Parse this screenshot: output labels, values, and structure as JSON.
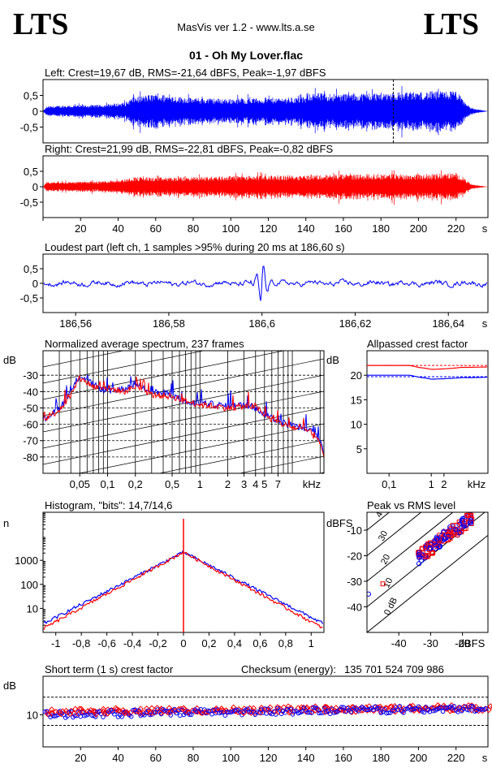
{
  "header": {
    "logo_left": "LTS",
    "logo_right": "LTS",
    "app_title": "MasVis ver 1.2 - www.lts.a.se",
    "file_title": "01 - Oh My Lover.flac"
  },
  "colors": {
    "left": "#0000ff",
    "right": "#ff0000",
    "axes": "#000000"
  },
  "chart_data": [
    {
      "type": "line",
      "title": "Left: Crest=19,67 dB, RMS=-21,64 dBFS, Peak=-1,97 dBFS",
      "ytick_labels": [
        "0,5",
        "0",
        "-0,5"
      ],
      "yticks": [
        0.5,
        0,
        -0.5
      ],
      "ylim": [
        -1,
        1
      ],
      "xlim": [
        0,
        237
      ],
      "marker_x": 186.6,
      "series": [
        {
          "envelope_x": [
            0,
            2,
            10,
            30,
            44,
            48,
            60,
            80,
            100,
            140,
            140.5,
            160,
            185,
            200,
            220,
            224,
            228,
            237
          ],
          "envelope_y": [
            0,
            0.15,
            0.18,
            0.2,
            0.28,
            0.45,
            0.55,
            0.42,
            0.4,
            0.45,
            0.58,
            0.56,
            0.6,
            0.62,
            0.65,
            0.35,
            0.1,
            0
          ]
        }
      ]
    },
    {
      "type": "line",
      "title": "Right: Crest=21,99 dB, RMS=-22,81 dBFS, Peak=-0,82 dBFS",
      "ytick_labels": [
        "0,5",
        "0",
        "-0,5"
      ],
      "yticks": [
        0.5,
        0,
        -0.5
      ],
      "ylim": [
        -1,
        1
      ],
      "xlim": [
        0,
        237
      ],
      "xtick_labels": [
        "20",
        "40",
        "60",
        "80",
        "100",
        "120",
        "140",
        "160",
        "180",
        "200",
        "220",
        "s"
      ],
      "xticks": [
        20,
        40,
        60,
        80,
        100,
        120,
        140,
        160,
        180,
        200,
        220
      ],
      "series": [
        {
          "envelope_x": [
            0,
            2,
            10,
            30,
            44,
            48,
            60,
            80,
            100,
            140,
            160,
            185,
            200,
            220,
            224,
            228,
            237
          ],
          "envelope_y": [
            0,
            0.15,
            0.16,
            0.18,
            0.25,
            0.32,
            0.3,
            0.32,
            0.35,
            0.38,
            0.4,
            0.42,
            0.4,
            0.45,
            0.3,
            0.08,
            0
          ]
        }
      ]
    },
    {
      "type": "line",
      "title": "Loudest part (left  ch, 1 samples >95% during 20 ms at 186,60 s)",
      "ytick_labels": [
        "0,5",
        "0",
        "-0,5"
      ],
      "yticks": [
        0.5,
        0,
        -0.5
      ],
      "ylim": [
        -1,
        1
      ],
      "xlim": [
        186.553,
        186.6485
      ],
      "xtick_labels": [
        "186,56",
        "186,58",
        "186,6",
        "186,62",
        "186,64",
        "s"
      ],
      "xticks": [
        186.56,
        186.58,
        186.6,
        186.62,
        186.64
      ],
      "peak_x": 186.6,
      "peak_y": 0.95
    },
    {
      "type": "line",
      "title": "Normalized average spectrum, 237 frames",
      "ylabel": "dB",
      "ytick_labels": [
        "-30",
        "-40",
        "-50",
        "-60",
        "-70",
        "-80"
      ],
      "yticks": [
        -30,
        -40,
        -50,
        -60,
        -70,
        -80
      ],
      "ylim": [
        -90,
        -15
      ],
      "xscale": "log",
      "xlim": [
        0.02,
        22
      ],
      "xlabel": "kHz",
      "xtick_labels": [
        "0,05",
        "0,1",
        "0,2",
        "0,5",
        "1",
        "2",
        "3",
        "4",
        "5",
        "7",
        "kHz"
      ],
      "xticks": [
        0.05,
        0.1,
        0.2,
        0.5,
        1,
        2,
        3,
        4,
        5,
        7
      ],
      "series": [
        {
          "x": [
            0.02,
            0.03,
            0.04,
            0.05,
            0.07,
            0.1,
            0.15,
            0.2,
            0.3,
            0.5,
            0.7,
            1,
            1.5,
            2,
            3,
            4,
            5,
            7,
            10,
            15,
            20,
            22
          ],
          "y": [
            -57,
            -50,
            -40,
            -30,
            -36,
            -40,
            -38,
            -35,
            -40,
            -42,
            -47,
            -47,
            -48,
            -49,
            -48,
            -50,
            -54,
            -58,
            -61,
            -63,
            -70,
            -78
          ]
        },
        {
          "x": [
            0.02,
            0.03,
            0.04,
            0.05,
            0.07,
            0.1,
            0.15,
            0.2,
            0.3,
            0.5,
            0.7,
            1,
            1.5,
            2,
            3,
            4,
            5,
            7,
            10,
            15,
            20,
            22
          ],
          "y": [
            -57,
            -51,
            -42,
            -32,
            -37,
            -38,
            -40,
            -37,
            -42,
            -43,
            -46,
            -48,
            -49,
            -50,
            -49,
            -49,
            -55,
            -59,
            -62,
            -64,
            -72,
            -80
          ]
        }
      ]
    },
    {
      "type": "line",
      "title": "Allpassed crest factor",
      "ylabel": "dB",
      "ytick_labels": [
        "20",
        "15",
        "10",
        "5"
      ],
      "yticks": [
        20,
        15,
        10,
        5
      ],
      "ylim": [
        0,
        25
      ],
      "xscale": "log",
      "xlim": [
        0.03,
        22
      ],
      "xtick_labels": [
        "0,1",
        "1",
        "2",
        "kHz"
      ],
      "xticks": [
        0.1,
        1,
        2
      ],
      "series": [
        {
          "x": [
            0.03,
            0.1,
            0.3,
            0.5,
            1,
            2,
            5,
            22
          ],
          "y": [
            20,
            20,
            20,
            19.6,
            19.2,
            19.3,
            19.5,
            19.6
          ],
          "ref": 19.7
        },
        {
          "x": [
            0.03,
            0.1,
            0.3,
            0.5,
            1,
            2,
            5,
            22
          ],
          "y": [
            22,
            22,
            22,
            21.6,
            21.2,
            21.3,
            21.6,
            21.7
          ],
          "ref": 22
        }
      ]
    },
    {
      "type": "line",
      "title": "Histogram, \"bits\": 14,7/14,6",
      "ylabel": "n",
      "yscale": "log",
      "ytick_labels": [
        "1000",
        "100",
        "10"
      ],
      "yticks": [
        1000,
        100,
        10
      ],
      "ylim": [
        1,
        100000
      ],
      "xlim": [
        -1.1,
        1.1
      ],
      "xtick_labels": [
        "-1",
        "-0,8",
        "-0,6",
        "-0,4",
        "-0,2",
        "0",
        "0,2",
        "0,4",
        "0,6",
        "0,8",
        "1"
      ],
      "xticks": [
        -1,
        -0.8,
        -0.6,
        -0.4,
        -0.2,
        0,
        0.2,
        0.4,
        0.6,
        0.8,
        1
      ],
      "peak": 2200,
      "series": [
        {
          "width": 0.16
        },
        {
          "width": 0.15
        }
      ]
    },
    {
      "type": "scatter",
      "title": "Peak vs RMS level",
      "ylabel": "dBFS",
      "xlabel": "dBFS",
      "ytick_labels": [
        "-10",
        "-20",
        "-30",
        "-40"
      ],
      "yticks": [
        -10,
        -20,
        -30,
        -40
      ],
      "ylim": [
        -50,
        -3
      ],
      "xlim": [
        -50,
        -12
      ],
      "xtick_labels": [
        "-40",
        "-30",
        "-20",
        "dBFS"
      ],
      "xticks": [
        -40,
        -30,
        -20
      ],
      "diagonal_labels": [
        "40",
        "30",
        "20",
        "10",
        "0 dB"
      ],
      "diagonals": [
        40,
        30,
        20,
        10,
        0
      ]
    },
    {
      "type": "scatter",
      "title": "Short term (1 s) crest factor",
      "ylabel": "dB",
      "ytick_labels": [
        "10"
      ],
      "yticks": [
        10
      ],
      "ylim": [
        0,
        22
      ],
      "xlim": [
        0,
        237
      ],
      "ref_lines": [
        15.5,
        6.7
      ],
      "xtick_labels": [
        "20",
        "40",
        "60",
        "80",
        "100",
        "120",
        "140",
        "160",
        "180",
        "200",
        "220",
        "s"
      ],
      "xticks": [
        20,
        40,
        60,
        80,
        100,
        120,
        140,
        160,
        180,
        200,
        220
      ]
    }
  ],
  "checksum": {
    "label": "Checksum (energy):",
    "value": "135 701 524 709 986"
  }
}
